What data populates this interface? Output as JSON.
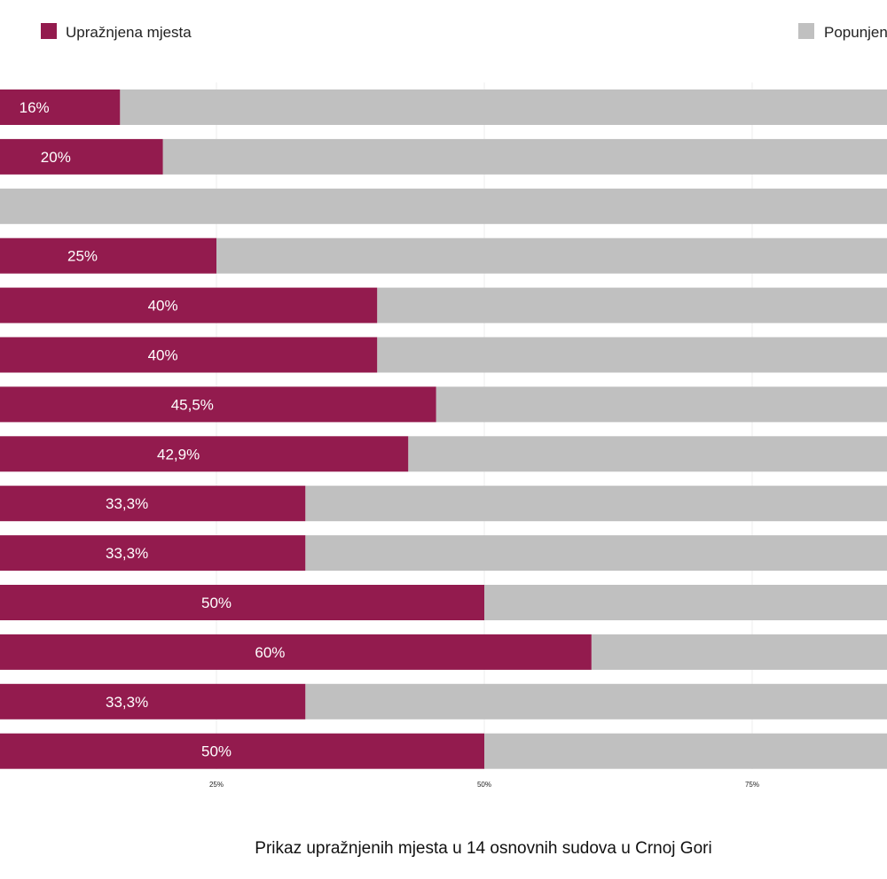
{
  "chart_data": {
    "type": "bar",
    "orientation": "horizontal",
    "stacked": true,
    "series": [
      {
        "name": "Upražnjena mjesta",
        "color": "#931b4e",
        "values": [
          16,
          20,
          3,
          25,
          40,
          40,
          45.5,
          42.9,
          33.3,
          33.3,
          50,
          60,
          33.3,
          50
        ],
        "labels": [
          "16%",
          "20%",
          "",
          "25%",
          "40%",
          "40%",
          "45,5%",
          "42,9%",
          "33,3%",
          "33,3%",
          "50%",
          "60%",
          "33,3%",
          "50%"
        ]
      },
      {
        "name": "Popunjena mjesta",
        "color": "#c0c0c0",
        "values": [
          84,
          80,
          97,
          75,
          60,
          60,
          54.5,
          57.1,
          66.7,
          66.7,
          50,
          40,
          66.7,
          50
        ]
      }
    ],
    "x_ticks": [
      "25%",
      "50%",
      "75%"
    ],
    "x_tick_values": [
      25,
      50,
      75
    ],
    "xlim": [
      0,
      100
    ],
    "grid": true,
    "legend": "top",
    "caption": "Prikaz upražnjenih mjesta u 14 osnovnih sudova u Crnoj Gori"
  }
}
